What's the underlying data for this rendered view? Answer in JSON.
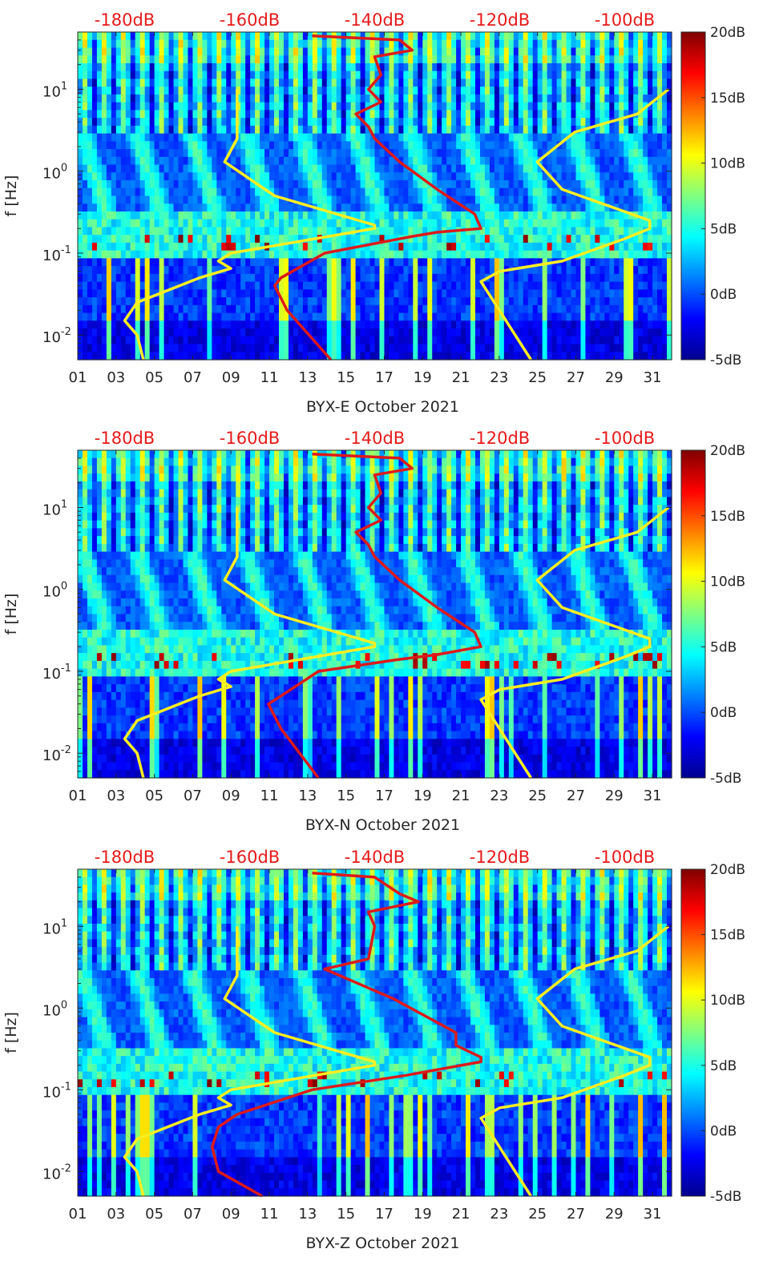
{
  "colors": {
    "ref_curve": "#ffee22",
    "psd_curve": "#dd1a1a",
    "top_axis_text": "#e61a1a",
    "colormap": [
      "#00008f",
      "#0000ff",
      "#0080ff",
      "#00ffff",
      "#80ff80",
      "#ffff00",
      "#ff8000",
      "#ff0000",
      "#800000"
    ]
  },
  "chart_data": [
    {
      "type": "heatmap",
      "xlabel": "BYX-E October 2021",
      "ylabel": "f [Hz]",
      "x_ticks": [
        "01",
        "03",
        "05",
        "07",
        "09",
        "11",
        "13",
        "15",
        "17",
        "19",
        "21",
        "23",
        "25",
        "27",
        "29",
        "31"
      ],
      "xlim": [
        1,
        32
      ],
      "y_scale": "log",
      "ylim": [
        0.005,
        50
      ],
      "y_ticks": [
        0.01,
        0.1,
        1,
        10
      ],
      "y_tick_labels": [
        [
          "10",
          "-2"
        ],
        [
          "10",
          "-1"
        ],
        [
          "10",
          "0"
        ],
        [
          "10",
          "1"
        ]
      ],
      "colorbar": {
        "clim": [
          -5,
          20
        ],
        "ticks": [
          -5,
          0,
          5,
          10,
          15,
          20
        ],
        "tick_labels": [
          "-5dB",
          "0dB",
          "5dB",
          "10dB",
          "15dB",
          "20dB"
        ]
      },
      "top_axis": {
        "label_values": [
          -180,
          -160,
          -140,
          -120,
          -100
        ],
        "labels": [
          "-180dB",
          "-160dB",
          "-140dB",
          "-120dB",
          "-100dB"
        ],
        "xlim": [
          -187.5,
          -92.5
        ]
      },
      "series": [
        {
          "color": "yellow",
          "points": [
            [
              -177,
              0.005
            ],
            [
              -178,
              0.01
            ],
            [
              -180,
              0.015
            ],
            [
              -178,
              0.025
            ],
            [
              -168,
              0.05
            ],
            [
              -163,
              0.065
            ],
            [
              -165,
              0.08
            ],
            [
              -163,
              0.1
            ],
            [
              -140,
              0.2
            ],
            [
              -140,
              0.22
            ],
            [
              -156,
              0.5
            ],
            [
              -164,
              1.3
            ],
            [
              -162,
              2.5
            ],
            [
              -162,
              10
            ]
          ]
        },
        {
          "color": "yellow",
          "points": [
            [
              -115,
              0.005
            ],
            [
              -123,
              0.045
            ],
            [
              -120,
              0.06
            ],
            [
              -110,
              0.08
            ],
            [
              -100,
              0.15
            ],
            [
              -96,
              0.2
            ],
            [
              -96,
              0.25
            ],
            [
              -110,
              0.6
            ],
            [
              -114,
              1.3
            ],
            [
              -108,
              3
            ],
            [
              -98,
              5
            ],
            [
              -93,
              10
            ]
          ]
        },
        {
          "color": "red",
          "points": [
            [
              -147,
              0.005
            ],
            [
              -154,
              0.02
            ],
            [
              -156,
              0.04
            ],
            [
              -155,
              0.05
            ],
            [
              -148,
              0.1
            ],
            [
              -134,
              0.16
            ],
            [
              -130,
              0.18
            ],
            [
              -123,
              0.2
            ],
            [
              -124,
              0.3
            ],
            [
              -130,
              0.6
            ],
            [
              -136,
              1.3
            ],
            [
              -140,
              2.5
            ],
            [
              -141,
              3.5
            ],
            [
              -143,
              5
            ],
            [
              -139,
              7
            ],
            [
              -141,
              10
            ],
            [
              -139,
              15
            ],
            [
              -140,
              25
            ],
            [
              -134,
              30
            ],
            [
              -136,
              40
            ],
            [
              -150,
              45
            ]
          ]
        }
      ]
    },
    {
      "type": "heatmap",
      "xlabel": "BYX-N October 2021",
      "ylabel": "f [Hz]",
      "x_ticks": [
        "01",
        "03",
        "05",
        "07",
        "09",
        "11",
        "13",
        "15",
        "17",
        "19",
        "21",
        "23",
        "25",
        "27",
        "29",
        "31"
      ],
      "xlim": [
        1,
        32
      ],
      "y_scale": "log",
      "ylim": [
        0.005,
        50
      ],
      "y_ticks": [
        0.01,
        0.1,
        1,
        10
      ],
      "y_tick_labels": [
        [
          "10",
          "-2"
        ],
        [
          "10",
          "-1"
        ],
        [
          "10",
          "0"
        ],
        [
          "10",
          "1"
        ]
      ],
      "colorbar": {
        "clim": [
          -5,
          20
        ],
        "ticks": [
          -5,
          0,
          5,
          10,
          15,
          20
        ],
        "tick_labels": [
          "-5dB",
          "0dB",
          "5dB",
          "10dB",
          "15dB",
          "20dB"
        ]
      },
      "top_axis": {
        "label_values": [
          -180,
          -160,
          -140,
          -120,
          -100
        ],
        "labels": [
          "-180dB",
          "-160dB",
          "-140dB",
          "-120dB",
          "-100dB"
        ],
        "xlim": [
          -187.5,
          -92.5
        ]
      },
      "series": [
        {
          "color": "yellow",
          "points": [
            [
              -177,
              0.005
            ],
            [
              -178,
              0.01
            ],
            [
              -180,
              0.015
            ],
            [
              -178,
              0.025
            ],
            [
              -168,
              0.05
            ],
            [
              -163,
              0.065
            ],
            [
              -165,
              0.08
            ],
            [
              -163,
              0.1
            ],
            [
              -140,
              0.2
            ],
            [
              -140,
              0.22
            ],
            [
              -156,
              0.5
            ],
            [
              -164,
              1.3
            ],
            [
              -162,
              2.5
            ],
            [
              -162,
              10
            ]
          ]
        },
        {
          "color": "yellow",
          "points": [
            [
              -115,
              0.005
            ],
            [
              -123,
              0.045
            ],
            [
              -120,
              0.06
            ],
            [
              -110,
              0.08
            ],
            [
              -100,
              0.15
            ],
            [
              -96,
              0.2
            ],
            [
              -96,
              0.25
            ],
            [
              -110,
              0.6
            ],
            [
              -114,
              1.3
            ],
            [
              -108,
              3
            ],
            [
              -98,
              5
            ],
            [
              -93,
              10
            ]
          ]
        },
        {
          "color": "red",
          "points": [
            [
              -149,
              0.005
            ],
            [
              -155,
              0.02
            ],
            [
              -157,
              0.04
            ],
            [
              -155,
              0.05
            ],
            [
              -149,
              0.1
            ],
            [
              -136,
              0.14
            ],
            [
              -130,
              0.16
            ],
            [
              -123,
              0.2
            ],
            [
              -124,
              0.3
            ],
            [
              -130,
              0.6
            ],
            [
              -136,
              1.3
            ],
            [
              -140,
              2.5
            ],
            [
              -141,
              3.5
            ],
            [
              -143,
              5
            ],
            [
              -139,
              7
            ],
            [
              -141,
              10
            ],
            [
              -139,
              15
            ],
            [
              -140,
              25
            ],
            [
              -134,
              30
            ],
            [
              -136,
              40
            ],
            [
              -150,
              45
            ]
          ]
        }
      ]
    },
    {
      "type": "heatmap",
      "xlabel": "BYX-Z October 2021",
      "ylabel": "f [Hz]",
      "x_ticks": [
        "01",
        "03",
        "05",
        "07",
        "09",
        "11",
        "13",
        "15",
        "17",
        "19",
        "21",
        "23",
        "25",
        "27",
        "29",
        "31"
      ],
      "xlim": [
        1,
        32
      ],
      "y_scale": "log",
      "ylim": [
        0.005,
        50
      ],
      "y_ticks": [
        0.01,
        0.1,
        1,
        10
      ],
      "y_tick_labels": [
        [
          "10",
          "-2"
        ],
        [
          "10",
          "-1"
        ],
        [
          "10",
          "0"
        ],
        [
          "10",
          "1"
        ]
      ],
      "colorbar": {
        "clim": [
          -5,
          20
        ],
        "ticks": [
          -5,
          0,
          5,
          10,
          15,
          20
        ],
        "tick_labels": [
          "-5dB",
          "0dB",
          "5dB",
          "10dB",
          "15dB",
          "20dB"
        ]
      },
      "top_axis": {
        "label_values": [
          -180,
          -160,
          -140,
          -120,
          -100
        ],
        "labels": [
          "-180dB",
          "-160dB",
          "-140dB",
          "-120dB",
          "-100dB"
        ],
        "xlim": [
          -187.5,
          -92.5
        ]
      },
      "series": [
        {
          "color": "yellow",
          "points": [
            [
              -177,
              0.005
            ],
            [
              -178,
              0.01
            ],
            [
              -180,
              0.015
            ],
            [
              -178,
              0.025
            ],
            [
              -168,
              0.05
            ],
            [
              -163,
              0.065
            ],
            [
              -165,
              0.08
            ],
            [
              -163,
              0.1
            ],
            [
              -140,
              0.2
            ],
            [
              -140,
              0.22
            ],
            [
              -156,
              0.5
            ],
            [
              -164,
              1.3
            ],
            [
              -162,
              2.5
            ],
            [
              -162,
              10
            ]
          ]
        },
        {
          "color": "yellow",
          "points": [
            [
              -115,
              0.005
            ],
            [
              -123,
              0.045
            ],
            [
              -120,
              0.06
            ],
            [
              -110,
              0.08
            ],
            [
              -100,
              0.15
            ],
            [
              -96,
              0.2
            ],
            [
              -96,
              0.25
            ],
            [
              -110,
              0.6
            ],
            [
              -114,
              1.3
            ],
            [
              -108,
              3
            ],
            [
              -98,
              5
            ],
            [
              -93,
              10
            ]
          ]
        },
        {
          "color": "red",
          "points": [
            [
              -158,
              0.005
            ],
            [
              -165,
              0.01
            ],
            [
              -166,
              0.02
            ],
            [
              -165,
              0.035
            ],
            [
              -162,
              0.05
            ],
            [
              -150,
              0.1
            ],
            [
              -135,
              0.15
            ],
            [
              -123,
              0.22
            ],
            [
              -123,
              0.25
            ],
            [
              -127,
              0.35
            ],
            [
              -127,
              0.5
            ],
            [
              -137,
              1.3
            ],
            [
              -148,
              3
            ],
            [
              -141,
              4
            ],
            [
              -140,
              10
            ],
            [
              -141,
              15
            ],
            [
              -133,
              20
            ],
            [
              -136,
              25
            ],
            [
              -140,
              40
            ],
            [
              -150,
              45
            ]
          ]
        }
      ]
    }
  ]
}
